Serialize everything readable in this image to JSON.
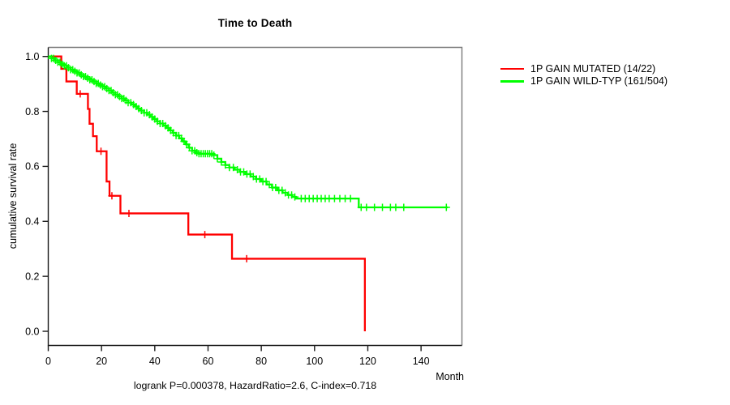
{
  "chart_data": {
    "type": "line",
    "subtype": "kaplan-meier-step",
    "title": "Time to Death",
    "xlabel": "Month",
    "ylabel": "cumulative survival rate",
    "annotation": "logrank P=0.000378, HazardRatio=2.6, C-index=0.718",
    "xlim": [
      0,
      155
    ],
    "ylim": [
      0.0,
      1.0
    ],
    "x_ticks": [
      0,
      20,
      40,
      60,
      80,
      100,
      120,
      140
    ],
    "x_tick_labels": [
      "0",
      "20",
      "40",
      "60",
      "80",
      "100",
      "120",
      "140"
    ],
    "y_ticks": [
      0.0,
      0.2,
      0.4,
      0.6,
      0.8,
      1.0
    ],
    "y_tick_labels": [
      "0.0",
      "0.2",
      "0.4",
      "0.6",
      "0.8",
      "1.0"
    ],
    "grid": "off",
    "legend_position": "right-outside",
    "colors": {
      "mutated": "#FF0000",
      "wildtype": "#00FF00",
      "axis_dark": "#1a1a1a",
      "box_light": "#7a7a7a",
      "background": "#FFFFFF"
    },
    "series": [
      {
        "key": "mutated",
        "name": "1P GAIN MUTATED (14/22)",
        "color": "#FF0000",
        "end_month": 118.9,
        "steps": [
          [
            0,
            1.0
          ],
          [
            4.9,
            0.955
          ],
          [
            6.8,
            0.909
          ],
          [
            10.7,
            0.864
          ],
          [
            14.9,
            0.809
          ],
          [
            15.5,
            0.755
          ],
          [
            16.8,
            0.71
          ],
          [
            18.2,
            0.655
          ],
          [
            21.9,
            0.545
          ],
          [
            23.0,
            0.493
          ],
          [
            27.1,
            0.429
          ],
          [
            52.6,
            0.352
          ],
          [
            69.0,
            0.264
          ],
          [
            118.9,
            0.0
          ]
        ],
        "censor_months": [
          12.0,
          19.8,
          23.9,
          30.3,
          58.8,
          74.5
        ]
      },
      {
        "key": "wildtype",
        "name": "1P GAIN WILD-TYP (161/504)",
        "color": "#00FF00",
        "end_month": 150,
        "steps": [
          [
            0,
            1.0
          ],
          [
            1.2,
            0.993
          ],
          [
            2.4,
            0.986
          ],
          [
            3.6,
            0.979
          ],
          [
            4.8,
            0.972
          ],
          [
            6.0,
            0.966
          ],
          [
            7.2,
            0.959
          ],
          [
            8.4,
            0.952
          ],
          [
            9.6,
            0.946
          ],
          [
            10.8,
            0.94
          ],
          [
            12.0,
            0.933
          ],
          [
            13.2,
            0.927
          ],
          [
            14.4,
            0.921
          ],
          [
            15.6,
            0.915
          ],
          [
            16.8,
            0.909
          ],
          [
            18.0,
            0.902
          ],
          [
            19.2,
            0.896
          ],
          [
            20.4,
            0.89
          ],
          [
            21.6,
            0.883
          ],
          [
            22.8,
            0.876
          ],
          [
            24.0,
            0.868
          ],
          [
            25.2,
            0.861
          ],
          [
            26.4,
            0.854
          ],
          [
            27.6,
            0.847
          ],
          [
            28.8,
            0.84
          ],
          [
            30.0,
            0.832
          ],
          [
            31.2,
            0.825
          ],
          [
            32.4,
            0.818
          ],
          [
            33.6,
            0.81
          ],
          [
            34.8,
            0.803
          ],
          [
            36.0,
            0.795
          ],
          [
            37.2,
            0.788
          ],
          [
            38.4,
            0.78
          ],
          [
            39.6,
            0.772
          ],
          [
            40.8,
            0.764
          ],
          [
            42.0,
            0.756
          ],
          [
            43.2,
            0.748
          ],
          [
            44.4,
            0.74
          ],
          [
            45.6,
            0.731
          ],
          [
            46.8,
            0.722
          ],
          [
            48.0,
            0.712
          ],
          [
            49.2,
            0.702
          ],
          [
            50.4,
            0.691
          ],
          [
            51.6,
            0.68
          ],
          [
            52.8,
            0.668
          ],
          [
            54.0,
            0.657
          ],
          [
            55.2,
            0.65
          ],
          [
            56.5,
            0.646
          ],
          [
            62.0,
            0.641
          ],
          [
            63.5,
            0.628
          ],
          [
            65.0,
            0.616
          ],
          [
            66.5,
            0.605
          ],
          [
            68.0,
            0.596
          ],
          [
            70.0,
            0.588
          ],
          [
            72.0,
            0.58
          ],
          [
            74.0,
            0.572
          ],
          [
            76.0,
            0.563
          ],
          [
            78.0,
            0.554
          ],
          [
            80.0,
            0.545
          ],
          [
            82.0,
            0.534
          ],
          [
            84.0,
            0.523
          ],
          [
            86.0,
            0.513
          ],
          [
            88.0,
            0.504
          ],
          [
            90.0,
            0.496
          ],
          [
            91.5,
            0.489
          ],
          [
            93.0,
            0.483
          ],
          [
            116.6,
            0.451
          ]
        ],
        "censor_months": [
          1.2,
          2,
          2.8,
          3.6,
          4.4,
          5.2,
          6,
          6.8,
          7.6,
          8.4,
          9.2,
          10,
          10.8,
          11.6,
          12.4,
          13.2,
          14,
          14.8,
          15.6,
          16.4,
          17.2,
          18,
          18.8,
          19.6,
          20.4,
          21.2,
          22,
          22.8,
          23.6,
          24.4,
          25.2,
          26,
          26.8,
          27.6,
          28.4,
          29.2,
          30,
          31,
          32,
          33,
          34,
          35,
          36,
          37,
          38,
          39,
          40,
          41,
          42,
          43,
          44,
          45,
          46,
          47,
          48,
          49,
          50,
          51,
          52,
          53,
          54,
          55,
          55.8,
          56.6,
          57.4,
          58.2,
          59,
          59.8,
          60.6,
          61.4,
          62.2,
          63.5,
          65,
          66.5,
          68,
          69.5,
          71,
          72.2,
          73.4,
          74.6,
          75.8,
          77,
          78.2,
          79.4,
          80.6,
          81.8,
          83,
          84.2,
          85.4,
          86.6,
          87.8,
          89,
          90.2,
          91.4,
          92.6,
          95,
          96.5,
          98,
          99.5,
          101,
          102.5,
          104,
          105.5,
          107.5,
          109.5,
          111.5,
          113.5,
          117.5,
          119.5,
          122.5,
          125.5,
          128.5,
          130.5,
          133.5,
          149.5
        ]
      }
    ]
  }
}
